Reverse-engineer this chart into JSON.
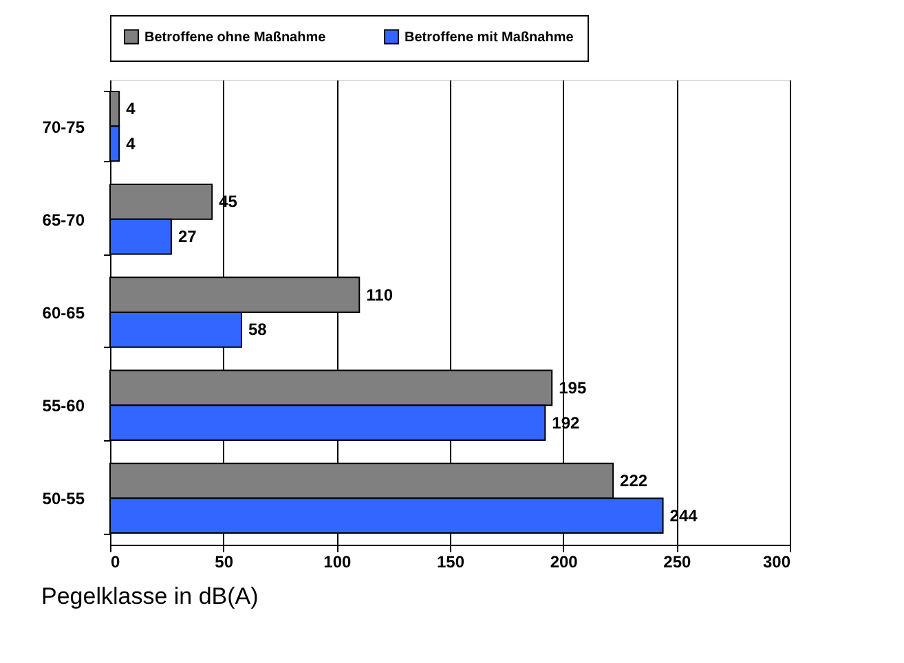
{
  "chart_data": {
    "type": "bar",
    "orientation": "horizontal",
    "ylabel": "Pegelklasse in dB(A)",
    "categories": [
      "70-75",
      "65-70",
      "60-65",
      "55-60",
      "50-55"
    ],
    "series": [
      {
        "name": "Betroffene ohne Maßnahme",
        "color": "#808080",
        "values": [
          4,
          45,
          110,
          195,
          222
        ]
      },
      {
        "name": "Betroffene mit Maßnahme",
        "color": "#3366ff",
        "values": [
          4,
          27,
          58,
          192,
          244
        ]
      }
    ],
    "xlim": [
      0,
      300
    ],
    "xticks": [
      0,
      50,
      100,
      150,
      200,
      250,
      300
    ],
    "grid": "x",
    "legend": "top",
    "data_labels": true
  }
}
